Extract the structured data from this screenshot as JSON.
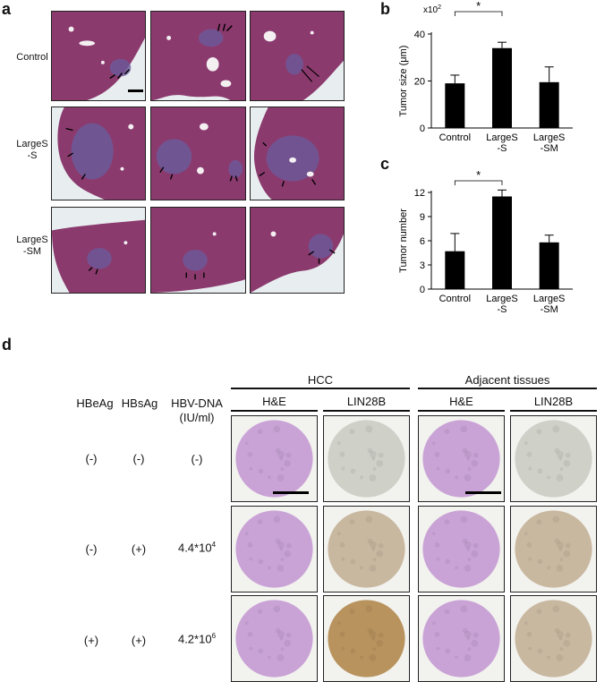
{
  "panels": {
    "a": "a",
    "b": "b",
    "c": "c",
    "d": "d"
  },
  "panel_a": {
    "rows": [
      "Control",
      "LargeS -S",
      "LargeS -SM"
    ],
    "row_labels": [
      {
        "line1": "Control",
        "line2": ""
      },
      {
        "line1": "LargeS",
        "line2": "-S"
      },
      {
        "line1": "LargeS",
        "line2": "-SM"
      }
    ],
    "colors": {
      "tissue": "#8b3a6e",
      "tumor": "#6b5a9a",
      "background": "#e8eef0"
    }
  },
  "panel_b": {
    "multiplier": "x10",
    "multiplier_exp": "2",
    "ylabel": "Tumor size (μm)",
    "sig": "*"
  },
  "panel_c": {
    "ylabel": "Tumor number",
    "sig": "*"
  },
  "chart_data": [
    {
      "type": "bar",
      "categories": [
        "Control",
        "LargeS -S",
        "LargeS -SM"
      ],
      "category_lines": [
        [
          "Control"
        ],
        [
          "LargeS",
          "-S"
        ],
        [
          "LargeS",
          "-SM"
        ]
      ],
      "values": [
        19,
        34,
        19.5
      ],
      "errors": [
        3.5,
        2.5,
        6.5
      ],
      "ylabel": "Tumor size (μm)",
      "ylim": [
        0,
        40
      ],
      "yticks": [
        0,
        20,
        40
      ],
      "significance": {
        "from": 0,
        "to": 1,
        "label": "*"
      }
    },
    {
      "type": "bar",
      "categories": [
        "Control",
        "LargeS -S",
        "LargeS -SM"
      ],
      "category_lines": [
        [
          "Control"
        ],
        [
          "LargeS",
          "-S"
        ],
        [
          "LargeS",
          "-SM"
        ]
      ],
      "values": [
        4.7,
        11.5,
        5.8
      ],
      "errors": [
        2.2,
        0.8,
        0.9
      ],
      "ylabel": "Tumor number",
      "ylim": [
        0,
        12
      ],
      "yticks": [
        0,
        3,
        6,
        9,
        12
      ],
      "significance": {
        "from": 0,
        "to": 1,
        "label": "*"
      }
    }
  ],
  "panel_d": {
    "group_headers": [
      "HCC",
      "Adjacent tissues"
    ],
    "sub_headers": [
      "H&E",
      "LIN28B",
      "H&E",
      "LIN28B"
    ],
    "col_headers": {
      "hbeag": "HBeAg",
      "hbsag": "HBsAg",
      "hbvdna_line1": "HBV-DNA",
      "hbvdna_line2": "(IU/ml)"
    },
    "rows": [
      {
        "hbeag": "(-)",
        "hbsag": "(-)",
        "dna_base": "(-)",
        "dna_exp": ""
      },
      {
        "hbeag": "(-)",
        "hbsag": "(+)",
        "dna_base": "4.4*10",
        "dna_exp": "4"
      },
      {
        "hbeag": "(+)",
        "hbsag": "(+)",
        "dna_base": "4.2*10",
        "dna_exp": "6"
      }
    ],
    "colors": {
      "he": "#c9a3d6",
      "lin_low": "#cfd0c8",
      "lin_mid": "#c9b8a0",
      "lin_high": "#b8935e",
      "frame": "#f2f2ee"
    }
  }
}
